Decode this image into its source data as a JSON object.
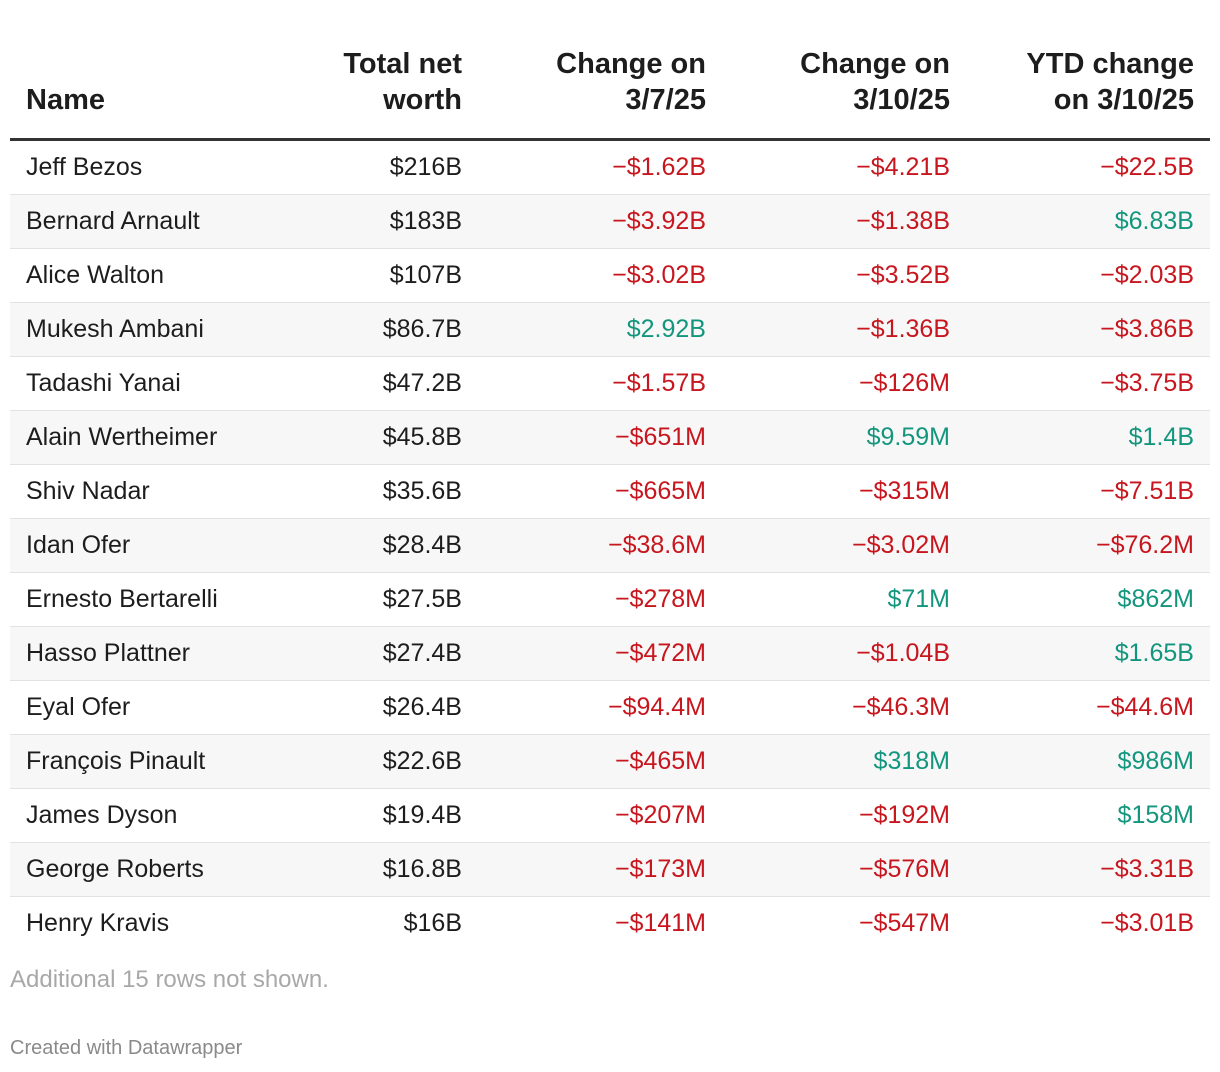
{
  "chart_data": {
    "type": "table",
    "columns": [
      {
        "key": "name",
        "label_lines": [
          "Name"
        ]
      },
      {
        "key": "net_worth",
        "label_lines": [
          "Total net",
          "worth"
        ]
      },
      {
        "key": "change_3_7",
        "label_lines": [
          "Change on",
          "3/7/25"
        ]
      },
      {
        "key": "change_3_10",
        "label_lines": [
          "Change on",
          "3/10/25"
        ]
      },
      {
        "key": "ytd",
        "label_lines": [
          "YTD change",
          "on 3/10/25"
        ]
      }
    ],
    "rows": [
      {
        "name": "Jeff Bezos",
        "net_worth": "$216B",
        "change_3_7": "−$1.62B",
        "change_3_10": "−$4.21B",
        "ytd": "−$22.5B"
      },
      {
        "name": "Bernard Arnault",
        "net_worth": "$183B",
        "change_3_7": "−$3.92B",
        "change_3_10": "−$1.38B",
        "ytd": "$6.83B"
      },
      {
        "name": "Alice Walton",
        "net_worth": "$107B",
        "change_3_7": "−$3.02B",
        "change_3_10": "−$3.52B",
        "ytd": "−$2.03B"
      },
      {
        "name": "Mukesh Ambani",
        "net_worth": "$86.7B",
        "change_3_7": "$2.92B",
        "change_3_10": "−$1.36B",
        "ytd": "−$3.86B"
      },
      {
        "name": "Tadashi Yanai",
        "net_worth": "$47.2B",
        "change_3_7": "−$1.57B",
        "change_3_10": "−$126M",
        "ytd": "−$3.75B"
      },
      {
        "name": "Alain Wertheimer",
        "net_worth": "$45.8B",
        "change_3_7": "−$651M",
        "change_3_10": "$9.59M",
        "ytd": "$1.4B"
      },
      {
        "name": "Shiv Nadar",
        "net_worth": "$35.6B",
        "change_3_7": "−$665M",
        "change_3_10": "−$315M",
        "ytd": "−$7.51B"
      },
      {
        "name": "Idan Ofer",
        "net_worth": "$28.4B",
        "change_3_7": "−$38.6M",
        "change_3_10": "−$3.02M",
        "ytd": "−$76.2M"
      },
      {
        "name": "Ernesto Bertarelli",
        "net_worth": "$27.5B",
        "change_3_7": "−$278M",
        "change_3_10": "$71M",
        "ytd": "$862M"
      },
      {
        "name": "Hasso Plattner",
        "net_worth": "$27.4B",
        "change_3_7": "−$472M",
        "change_3_10": "−$1.04B",
        "ytd": "$1.65B"
      },
      {
        "name": "Eyal Ofer",
        "net_worth": "$26.4B",
        "change_3_7": "−$94.4M",
        "change_3_10": "−$46.3M",
        "ytd": "−$44.6M"
      },
      {
        "name": "François Pinault",
        "net_worth": "$22.6B",
        "change_3_7": "−$465M",
        "change_3_10": "$318M",
        "ytd": "$986M"
      },
      {
        "name": "James Dyson",
        "net_worth": "$19.4B",
        "change_3_7": "−$207M",
        "change_3_10": "−$192M",
        "ytd": "$158M"
      },
      {
        "name": "George Roberts",
        "net_worth": "$16.8B",
        "change_3_7": "−$173M",
        "change_3_10": "−$576M",
        "ytd": "−$3.31B"
      },
      {
        "name": "Henry Kravis",
        "net_worth": "$16B",
        "change_3_7": "−$141M",
        "change_3_10": "−$547M",
        "ytd": "−$3.01B"
      }
    ],
    "colors": {
      "negative": "#c7161e",
      "positive": "#13967d",
      "text": "#1d1d1d"
    }
  },
  "footer": {
    "note": "Additional 15 rows not shown.",
    "credit": "Created with Datawrapper"
  }
}
